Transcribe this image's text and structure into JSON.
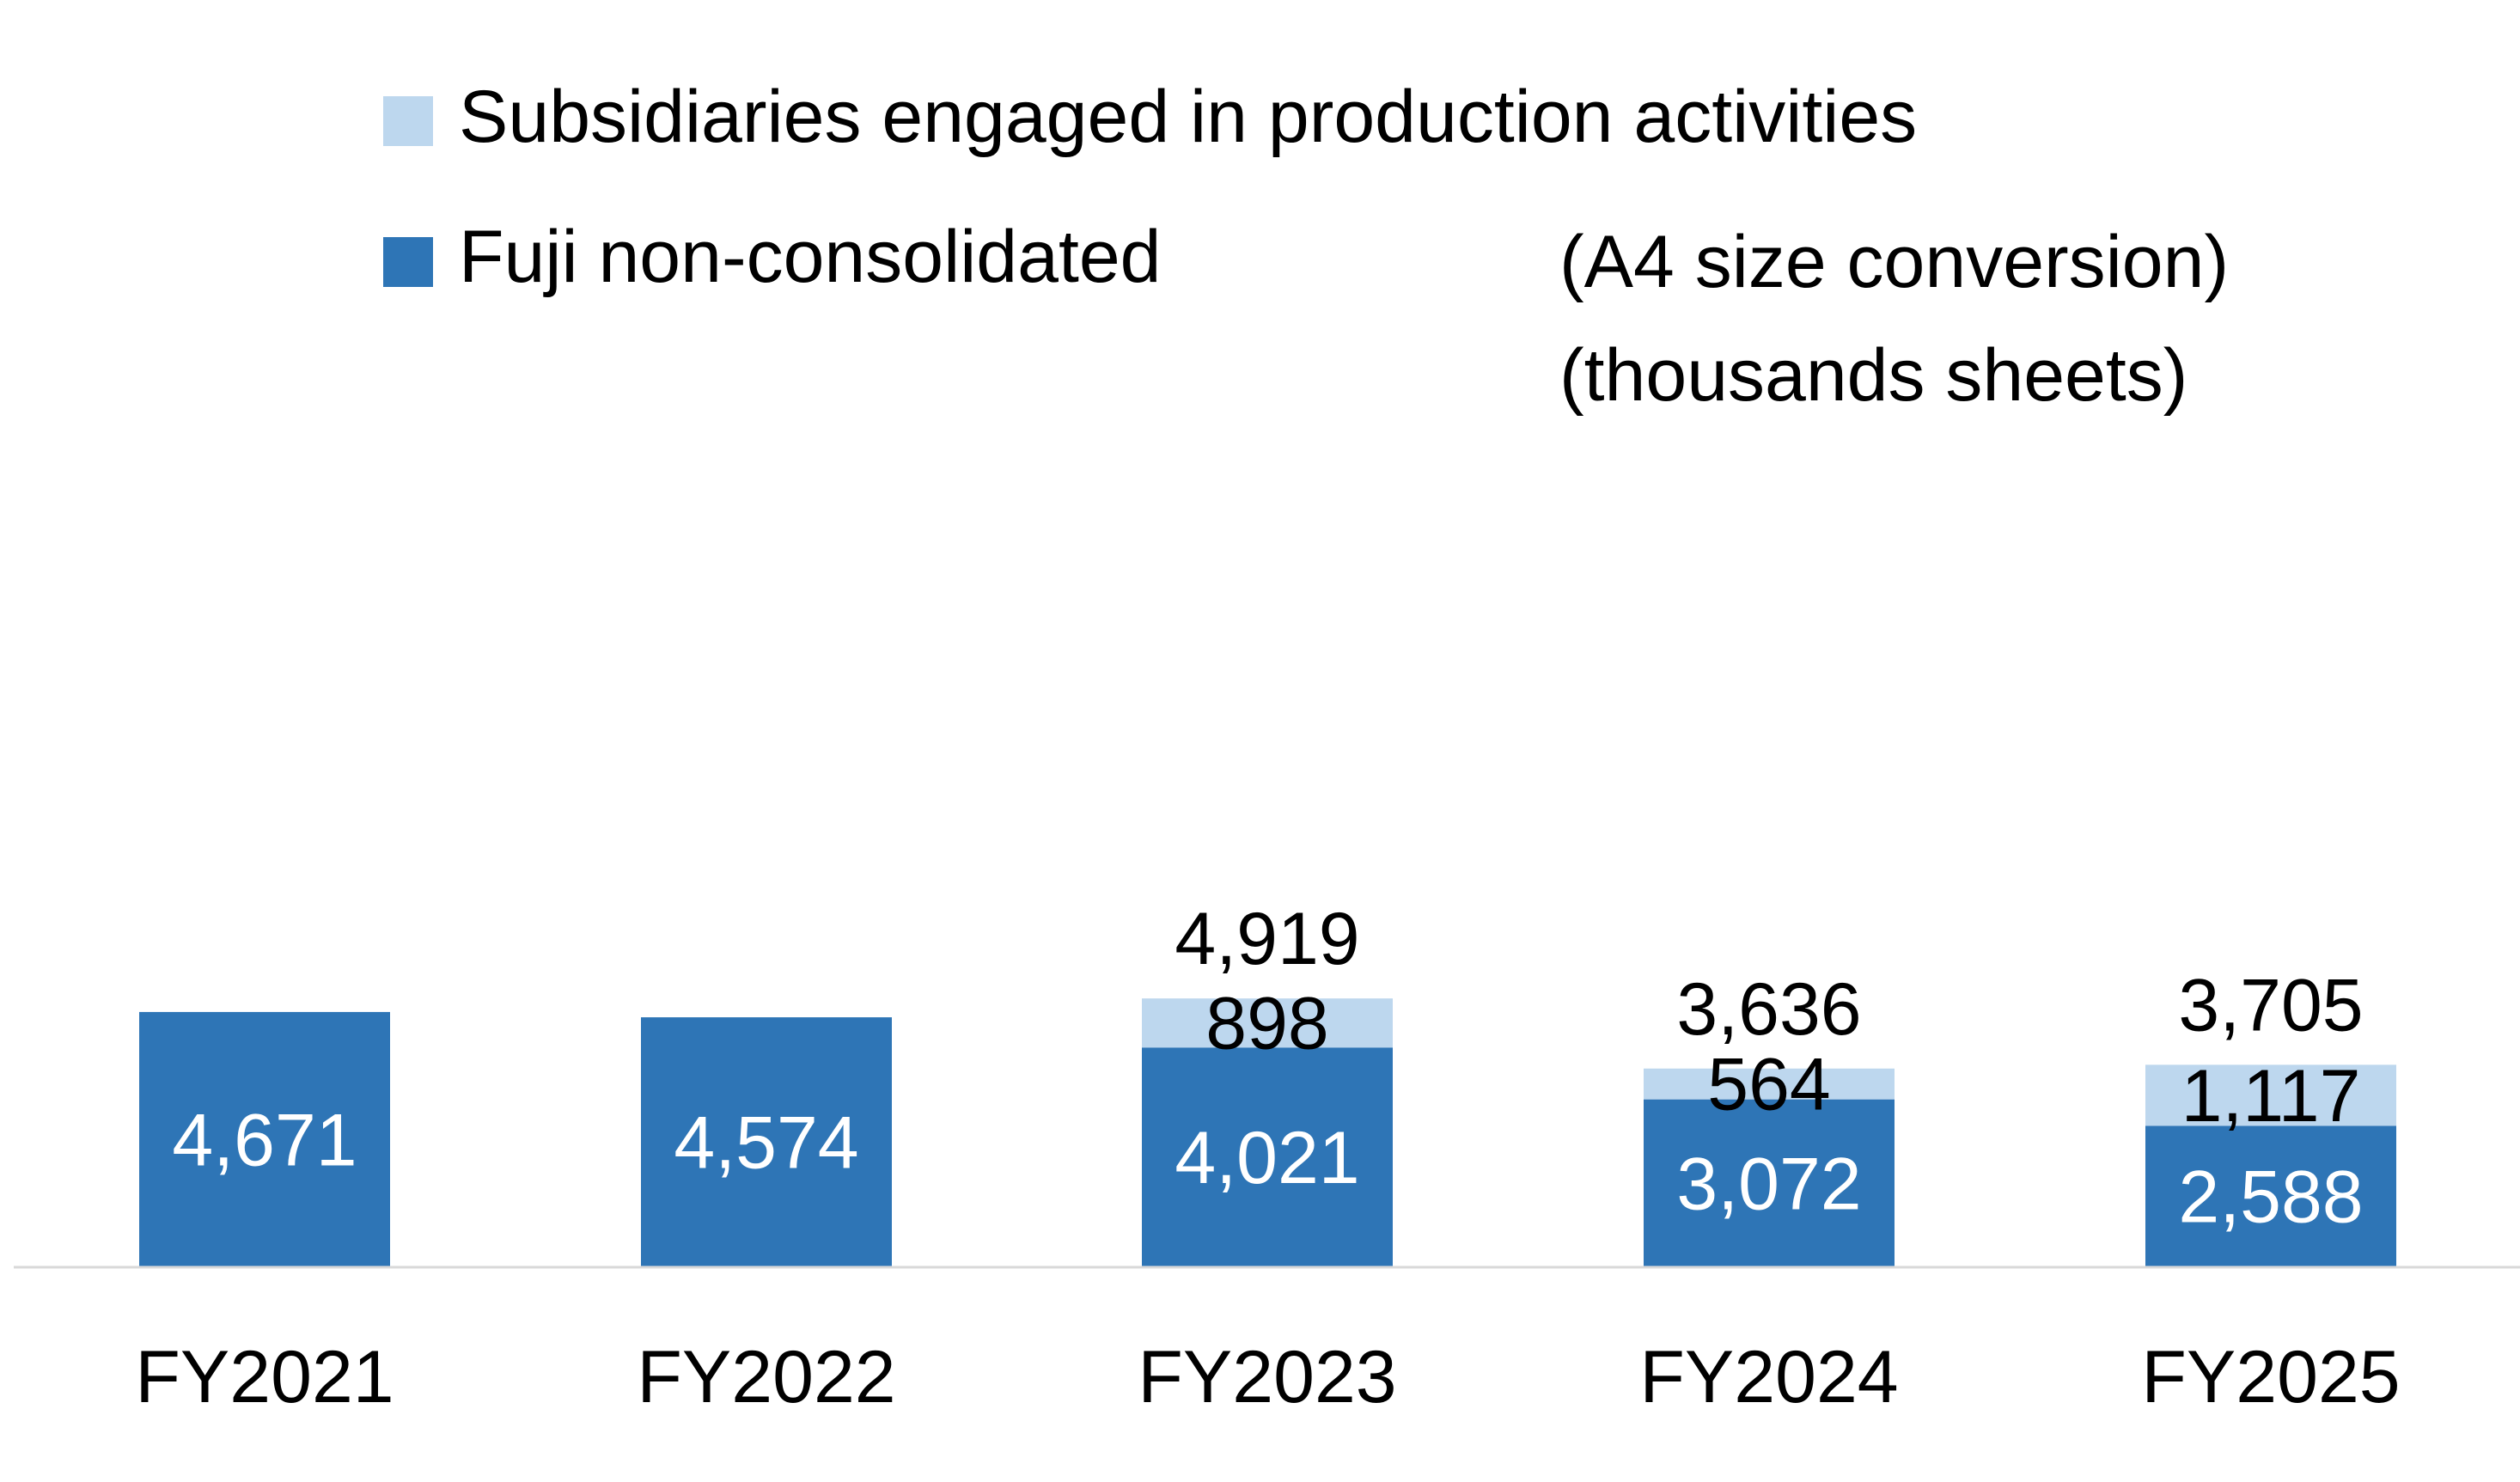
{
  "chart_data": {
    "type": "bar",
    "stacked": true,
    "categories": [
      "FY2021",
      "FY2022",
      "FY2023",
      "FY2024",
      "FY2025"
    ],
    "series": [
      {
        "name": "Fuji non-consolidated",
        "color": "#2E75B6",
        "values": [
          4671,
          4574,
          4021,
          3072,
          2588
        ],
        "labels": [
          "4,671",
          "4,574",
          "4,021",
          "3,072",
          "2,588"
        ]
      },
      {
        "name": "Subsidiaries engaged in production activities",
        "color": "#BDD7EE",
        "values": [
          null,
          null,
          898,
          564,
          1117
        ],
        "labels": [
          "",
          "",
          "898",
          "564",
          "1,117"
        ]
      }
    ],
    "totals": [
      "",
      "",
      "4,919",
      "3,636",
      "3,705"
    ],
    "unit_lines": [
      "(A4 size conversion)",
      "(thousands sheets)"
    ],
    "xlabel": "",
    "ylabel": "",
    "ylim": [
      0,
      5000
    ],
    "grid": false,
    "legend_position": "top"
  }
}
